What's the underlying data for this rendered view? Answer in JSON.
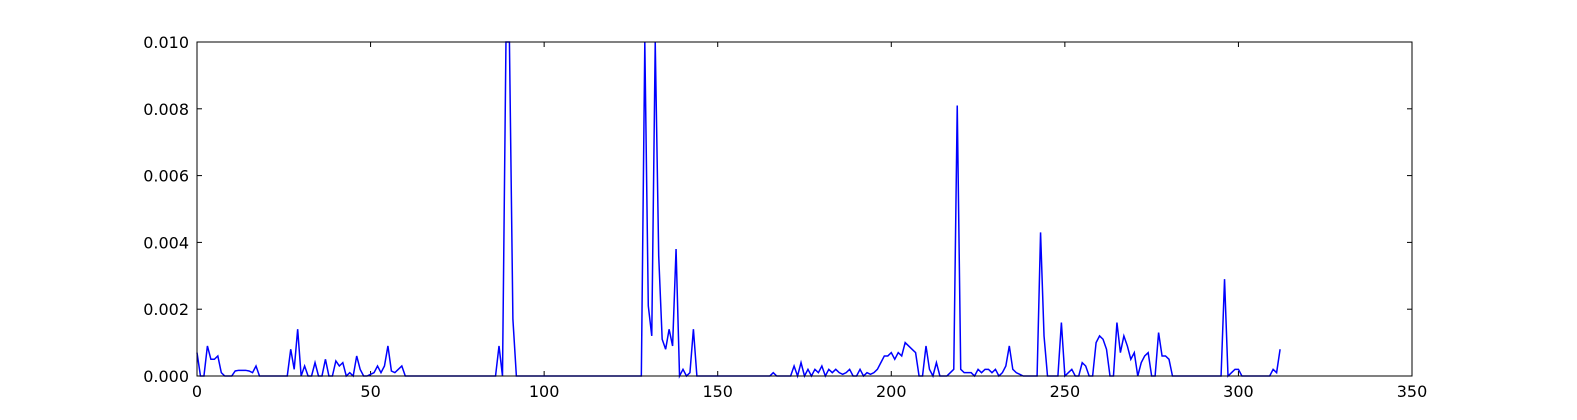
{
  "chart_data": {
    "type": "line",
    "title": "",
    "xlabel": "",
    "ylabel": "",
    "xlim": [
      0,
      350
    ],
    "ylim": [
      0,
      0.01
    ],
    "x_ticks": [
      0,
      50,
      100,
      150,
      200,
      250,
      300,
      350
    ],
    "x_tick_labels": [
      "0",
      "50",
      "100",
      "150",
      "200",
      "250",
      "300",
      "350"
    ],
    "y_ticks": [
      0,
      0.002,
      0.004,
      0.006,
      0.008,
      0.01
    ],
    "y_tick_labels": [
      "0.000",
      "0.002",
      "0.004",
      "0.006",
      "0.008",
      "0.010"
    ],
    "grid": false,
    "line_color": "#0000ff",
    "series": [
      {
        "points": [
          [
            0,
            0.0007
          ],
          [
            1,
            0
          ],
          [
            2,
            0
          ],
          [
            3,
            0.0009
          ],
          [
            4,
            0.0005
          ],
          [
            5,
            0.0005
          ],
          [
            6,
            0.0006
          ],
          [
            7,
            0.0001
          ],
          [
            8,
            0
          ],
          [
            9,
            0
          ],
          [
            10,
            0
          ],
          [
            11,
            0.00015
          ],
          [
            12,
            0.00017
          ],
          [
            13,
            0.00017
          ],
          [
            14,
            0.00017
          ],
          [
            15,
            0.00015
          ],
          [
            16,
            0.0001
          ],
          [
            17,
            0.0003
          ],
          [
            18,
            0
          ],
          [
            19,
            0
          ],
          [
            25,
            0
          ],
          [
            26,
            0
          ],
          [
            27,
            0.0008
          ],
          [
            28,
            0.0002
          ],
          [
            29,
            0.0014
          ],
          [
            30,
            0
          ],
          [
            31,
            0.0003
          ],
          [
            32,
            0
          ],
          [
            33,
            0
          ],
          [
            34,
            0.0004
          ],
          [
            35,
            0
          ],
          [
            36,
            0
          ],
          [
            37,
            0.0005
          ],
          [
            38,
            0
          ],
          [
            39,
            0
          ],
          [
            40,
            0.00045
          ],
          [
            41,
            0.0003
          ],
          [
            42,
            0.0004
          ],
          [
            43,
            0
          ],
          [
            44,
            0.0001
          ],
          [
            45,
            0
          ],
          [
            46,
            0.0006
          ],
          [
            47,
            0.0002
          ],
          [
            48,
            0
          ],
          [
            49,
            0
          ],
          [
            50,
            5e-05
          ],
          [
            51,
            0.0001
          ],
          [
            52,
            0.0003
          ],
          [
            53,
            0.0001
          ],
          [
            54,
            0.0003
          ],
          [
            55,
            0.0009
          ],
          [
            56,
            0.00015
          ],
          [
            57,
            0.0001
          ],
          [
            58,
            0.0002
          ],
          [
            59,
            0.0003
          ],
          [
            60,
            0
          ],
          [
            65,
            0
          ],
          [
            70,
            0
          ],
          [
            80,
            0
          ],
          [
            86,
            0
          ],
          [
            87,
            0.0009
          ],
          [
            88,
            0
          ],
          [
            89,
            0.01
          ],
          [
            90,
            0.01
          ],
          [
            91,
            0.0017
          ],
          [
            92,
            0
          ],
          [
            100,
            0
          ],
          [
            110,
            0
          ],
          [
            120,
            0
          ],
          [
            128,
            0
          ],
          [
            129,
            0.01
          ],
          [
            130,
            0.0021
          ],
          [
            131,
            0.0012
          ],
          [
            132,
            0.01
          ],
          [
            133,
            0.0036
          ],
          [
            134,
            0.0011
          ],
          [
            135,
            0.0008
          ],
          [
            136,
            0.0014
          ],
          [
            137,
            0.0009
          ],
          [
            138,
            0.0038
          ],
          [
            139,
            0
          ],
          [
            140,
            0.0002
          ],
          [
            141,
            0
          ],
          [
            142,
            0.0001
          ],
          [
            143,
            0.0014
          ],
          [
            144,
            0
          ],
          [
            150,
            0
          ],
          [
            160,
            0
          ],
          [
            165,
            0
          ],
          [
            166,
            0.0001
          ],
          [
            167,
            0
          ],
          [
            170,
            0
          ],
          [
            171,
            0
          ],
          [
            172,
            0.0003
          ],
          [
            173,
            0
          ],
          [
            174,
            0.0004
          ],
          [
            175,
            0
          ],
          [
            176,
            0.0002
          ],
          [
            177,
            0
          ],
          [
            178,
            0.0002
          ],
          [
            179,
            0.0001
          ],
          [
            180,
            0.0003
          ],
          [
            181,
            0
          ],
          [
            182,
            0.0002
          ],
          [
            183,
            0.0001
          ],
          [
            184,
            0.0002
          ],
          [
            185,
            0.0001
          ],
          [
            186,
            5e-05
          ],
          [
            187,
            0.0001
          ],
          [
            188,
            0.0002
          ],
          [
            189,
            0
          ],
          [
            190,
            0
          ],
          [
            191,
            0.0002
          ],
          [
            192,
            0
          ],
          [
            193,
            0.0001
          ],
          [
            194,
            5e-05
          ],
          [
            195,
            0.0001
          ],
          [
            196,
            0.0002
          ],
          [
            197,
            0.0004
          ],
          [
            198,
            0.0006
          ],
          [
            199,
            0.0006
          ],
          [
            200,
            0.0007
          ],
          [
            201,
            0.0005
          ],
          [
            202,
            0.0007
          ],
          [
            203,
            0.0006
          ],
          [
            204,
            0.001
          ],
          [
            205,
            0.0009
          ],
          [
            206,
            0.0008
          ],
          [
            207,
            0.0007
          ],
          [
            208,
            0
          ],
          [
            209,
            0
          ],
          [
            210,
            0.0009
          ],
          [
            211,
            0.0002
          ],
          [
            212,
            0
          ],
          [
            213,
            0.0004
          ],
          [
            214,
            0
          ],
          [
            215,
            0
          ],
          [
            216,
            0
          ],
          [
            217,
            0.0001
          ],
          [
            218,
            0.0002
          ],
          [
            219,
            0.0081
          ],
          [
            220,
            0.0002
          ],
          [
            221,
            0.0001
          ],
          [
            222,
            0.0001
          ],
          [
            223,
            0.0001
          ],
          [
            224,
            0
          ],
          [
            225,
            0.0002
          ],
          [
            226,
            0.0001
          ],
          [
            227,
            0.0002
          ],
          [
            228,
            0.0002
          ],
          [
            229,
            0.0001
          ],
          [
            230,
            0.0002
          ],
          [
            231,
            0
          ],
          [
            232,
            0.0001
          ],
          [
            233,
            0.0003
          ],
          [
            234,
            0.0009
          ],
          [
            235,
            0.0002
          ],
          [
            236,
            0.0001
          ],
          [
            237,
            5e-05
          ],
          [
            238,
            0
          ],
          [
            239,
            0
          ],
          [
            240,
            0
          ],
          [
            241,
            0
          ],
          [
            242,
            0
          ],
          [
            243,
            0.0043
          ],
          [
            244,
            0.0012
          ],
          [
            245,
            0
          ],
          [
            246,
            0
          ],
          [
            247,
            0
          ],
          [
            248,
            0
          ],
          [
            249,
            0.0016
          ],
          [
            250,
            0
          ],
          [
            251,
            0.0001
          ],
          [
            252,
            0.0002
          ],
          [
            253,
            0
          ],
          [
            254,
            0
          ],
          [
            255,
            0.0004
          ],
          [
            256,
            0.0003
          ],
          [
            257,
            0
          ],
          [
            258,
            0
          ],
          [
            259,
            0.001
          ],
          [
            260,
            0.0012
          ],
          [
            261,
            0.0011
          ],
          [
            262,
            0.0008
          ],
          [
            263,
            0
          ],
          [
            264,
            0
          ],
          [
            265,
            0.0016
          ],
          [
            266,
            0.0007
          ],
          [
            267,
            0.0012
          ],
          [
            268,
            0.0009
          ],
          [
            269,
            0.0005
          ],
          [
            270,
            0.0007
          ],
          [
            271,
            0
          ],
          [
            272,
            0.0004
          ],
          [
            273,
            0.0006
          ],
          [
            274,
            0.0007
          ],
          [
            275,
            0
          ],
          [
            276,
            0
          ],
          [
            277,
            0.0013
          ],
          [
            278,
            0.0006
          ],
          [
            279,
            0.0006
          ],
          [
            280,
            0.0005
          ],
          [
            281,
            0
          ],
          [
            282,
            0
          ],
          [
            290,
            0
          ],
          [
            295,
            0
          ],
          [
            296,
            0.0029
          ],
          [
            297,
            0
          ],
          [
            298,
            0.0001
          ],
          [
            299,
            0.0002
          ],
          [
            300,
            0.0002
          ],
          [
            301,
            0
          ],
          [
            305,
            0
          ],
          [
            308,
            0
          ],
          [
            309,
            0
          ],
          [
            310,
            0.0002
          ],
          [
            311,
            0.0001
          ],
          [
            312,
            0.0008
          ]
        ]
      }
    ]
  }
}
